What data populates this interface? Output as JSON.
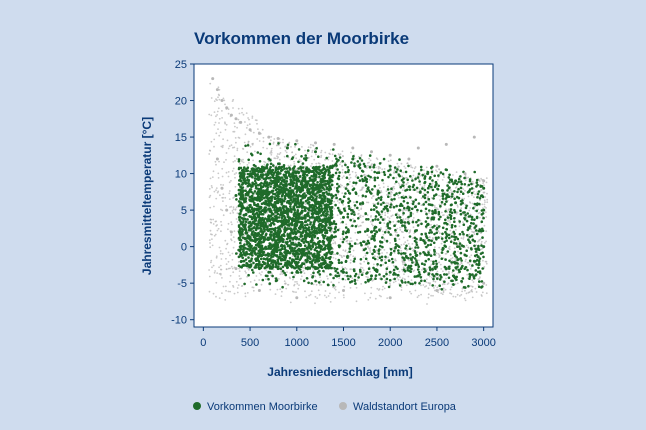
{
  "chart_data": {
    "type": "scatter",
    "title": "Vorkommen der Moorbirke",
    "xlabel": "Jahresniederschlag [mm]",
    "ylabel": "Jahresmitteltemperatur [°C]",
    "xlim": [
      -100,
      3100
    ],
    "ylim": [
      -11,
      25
    ],
    "x_ticks": [
      0,
      500,
      1000,
      1500,
      2000,
      2500,
      3000
    ],
    "y_ticks": [
      25,
      20,
      15,
      10,
      5,
      0,
      -5,
      -10
    ],
    "grid": false,
    "legend_position": "bottom",
    "series": [
      {
        "name": "Waldstandort Europa",
        "color": "#b8b8b8",
        "points": [
          [
            100,
            23
          ],
          [
            150,
            21.5
          ],
          [
            200,
            20
          ],
          [
            250,
            19
          ],
          [
            300,
            18
          ],
          [
            350,
            17.5
          ],
          [
            400,
            17
          ],
          [
            500,
            16
          ],
          [
            600,
            15.5
          ],
          [
            700,
            15
          ],
          [
            800,
            14.8
          ],
          [
            1000,
            14.5
          ],
          [
            1200,
            14.2
          ],
          [
            1400,
            14
          ],
          [
            1600,
            13.5
          ],
          [
            1800,
            13
          ],
          [
            2000,
            12.5
          ],
          [
            2200,
            12
          ],
          [
            2500,
            11
          ],
          [
            2800,
            10
          ],
          [
            3000,
            9
          ],
          [
            150,
            12
          ],
          [
            200,
            8
          ],
          [
            250,
            5
          ],
          [
            300,
            2
          ],
          [
            350,
            -3
          ],
          [
            600,
            -6
          ],
          [
            1000,
            -7
          ],
          [
            1500,
            -6
          ],
          [
            2000,
            -7
          ],
          [
            2500,
            -6
          ],
          [
            3000,
            -5
          ],
          [
            2900,
            15
          ],
          [
            2600,
            14
          ],
          [
            2300,
            13.5
          ]
        ]
      },
      {
        "name": "Vorkommen Moorbirke",
        "color": "#1f6b2a",
        "points": [
          [
            350,
            7
          ],
          [
            400,
            6
          ],
          [
            450,
            3
          ],
          [
            500,
            0
          ],
          [
            500,
            -2
          ],
          [
            600,
            -3
          ],
          [
            700,
            -3.5
          ],
          [
            800,
            -3
          ],
          [
            1000,
            -3.5
          ],
          [
            1200,
            -3
          ],
          [
            1500,
            -3.5
          ],
          [
            1800,
            -4
          ],
          [
            2000,
            -3.5
          ],
          [
            2300,
            -4
          ],
          [
            2600,
            -3
          ],
          [
            2900,
            -2
          ],
          [
            3000,
            0
          ],
          [
            3000,
            5
          ],
          [
            3000,
            8
          ],
          [
            2700,
            9
          ],
          [
            2400,
            10
          ],
          [
            2000,
            11
          ],
          [
            1600,
            12
          ],
          [
            1200,
            13
          ],
          [
            900,
            13.5
          ],
          [
            700,
            12
          ],
          [
            550,
            10
          ],
          [
            450,
            9
          ],
          [
            800,
            5
          ],
          [
            1000,
            3
          ],
          [
            1200,
            6
          ],
          [
            1500,
            4
          ],
          [
            1800,
            2
          ],
          [
            2100,
            5
          ],
          [
            2400,
            3
          ],
          [
            2700,
            6
          ],
          [
            1000,
            9
          ],
          [
            1300,
            10
          ],
          [
            700,
            1
          ],
          [
            900,
            7
          ]
        ]
      }
    ]
  }
}
